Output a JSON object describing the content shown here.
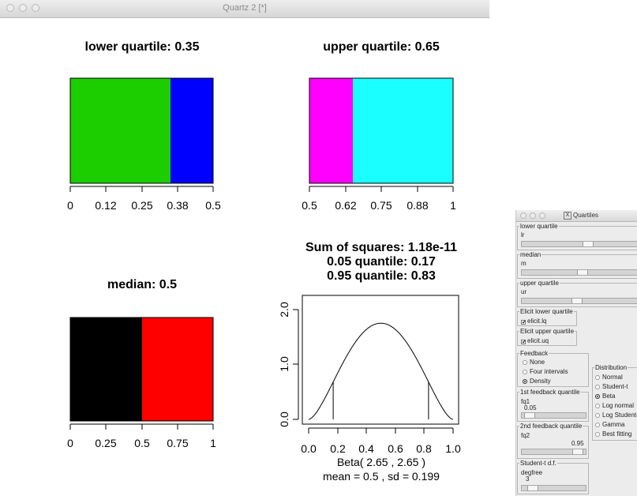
{
  "window": {
    "title": "Quartz 2 [*]"
  },
  "panels": {
    "lower_quartile": {
      "title": "lower quartile: 0.35",
      "ticks": [
        "0",
        "0.12",
        "0.25",
        "0.38",
        "0.5"
      ]
    },
    "upper_quartile": {
      "title": "upper quartile: 0.65",
      "ticks": [
        "0.5",
        "0.62",
        "0.75",
        "0.88",
        "1"
      ]
    },
    "median": {
      "title": "median: 0.5",
      "ticks": [
        "0",
        "0.25",
        "0.5",
        "0.75",
        "1"
      ]
    },
    "density": {
      "title_lines": [
        "Sum of squares: 1.18e-11",
        "0.05 quantile: 0.17",
        "0.95 quantile: 0.83"
      ],
      "x_ticks": [
        "0.0",
        "0.2",
        "0.4",
        "0.6",
        "0.8",
        "1.0"
      ],
      "y_ticks": [
        "0.0",
        "1.0",
        "2.0"
      ],
      "xlabel": "Beta( 2.65 , 2.65 )",
      "sublabel": "mean =  0.5 , sd =  0.199"
    }
  },
  "colors": {
    "lower_left": "#1ccd00",
    "lower_right": "#0000ff",
    "upper_left": "#ff00ff",
    "upper_right": "#1affff",
    "median_left": "#000000",
    "median_right": "#ff0000"
  },
  "chart_data": [
    {
      "type": "bar",
      "title": "lower quartile: 0.35",
      "range": [
        0,
        0.5
      ],
      "split": 0.35,
      "segments": [
        {
          "from": 0,
          "to": 0.35,
          "color": "#1ccd00"
        },
        {
          "from": 0.35,
          "to": 0.5,
          "color": "#0000ff"
        }
      ]
    },
    {
      "type": "bar",
      "title": "upper quartile: 0.65",
      "range": [
        0.5,
        1
      ],
      "split": 0.65,
      "segments": [
        {
          "from": 0.5,
          "to": 0.65,
          "color": "#ff00ff"
        },
        {
          "from": 0.65,
          "to": 1,
          "color": "#1affff"
        }
      ]
    },
    {
      "type": "bar",
      "title": "median: 0.5",
      "range": [
        0,
        1
      ],
      "split": 0.5,
      "segments": [
        {
          "from": 0,
          "to": 0.5,
          "color": "#000000"
        },
        {
          "from": 0.5,
          "to": 1,
          "color": "#ff0000"
        }
      ]
    },
    {
      "type": "line",
      "distribution": "Beta",
      "alpha": 2.65,
      "beta": 2.65,
      "xlim": [
        0,
        1
      ],
      "ylim": [
        0,
        2.2
      ],
      "quantile_lines": [
        0.17,
        0.83
      ],
      "xlabel": "Beta( 2.65 , 2.65 )"
    }
  ],
  "tk": {
    "title": "Quartiles",
    "lower_quartile": {
      "legend": "lower quartile",
      "var": "lr",
      "level": 0.55
    },
    "median": {
      "legend": "median",
      "var": "m",
      "level": 0.5
    },
    "upper_quartile": {
      "legend": "upper quartile",
      "var": "ur",
      "level": 0.45
    },
    "elicit_lq": {
      "legend": "Elicit lower quartile",
      "label": "elicit.lq",
      "mark": "✔"
    },
    "elicit_uq": {
      "legend": "Elicit upper quartile",
      "label": "elicit.uq",
      "mark": "✔"
    },
    "feedback": {
      "legend": "Feedback",
      "options": [
        "None",
        "Four intervals",
        "Density"
      ],
      "selected": 2
    },
    "distribution": {
      "legend": "Distribution",
      "options": [
        "Normal",
        "Student-t",
        "Beta",
        "Log normal",
        "Log Student-t",
        "Gamma",
        "Best fitting"
      ],
      "selected": 2
    },
    "fq1": {
      "legend": "1st feedback quantile",
      "var": "fq1",
      "value": "0.05",
      "level": 0.05
    },
    "fq2": {
      "legend": "2nd feedback quantile",
      "var": "fq2",
      "value": "0.95",
      "level": 0.95
    },
    "degfree": {
      "legend": "Student-t d.f.",
      "var": "degfree",
      "value": "3",
      "level": 0.1
    }
  }
}
